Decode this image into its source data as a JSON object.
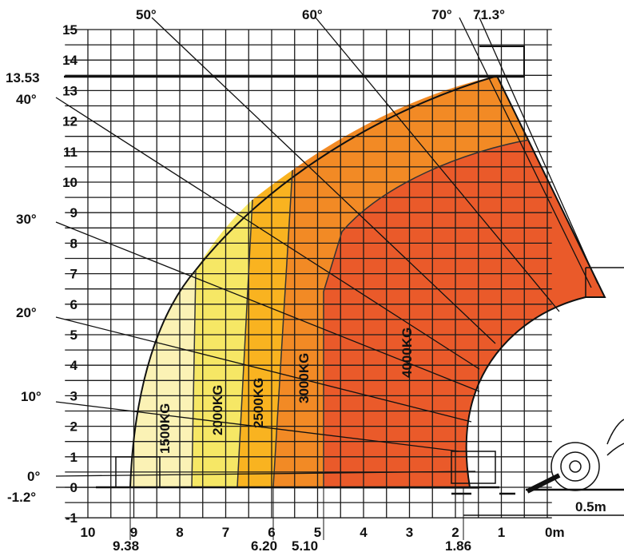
{
  "chart_data": {
    "type": "load_chart",
    "x_axis": {
      "unit_label": "0m",
      "ticks": [
        "10",
        "9",
        "8",
        "7",
        "6",
        "5",
        "4",
        "3",
        "2",
        "1"
      ],
      "marked_values": [
        "9.38",
        "6.20",
        "5.10",
        "1.86"
      ]
    },
    "y_axis": {
      "ticks": [
        "15",
        "14",
        "13",
        "12",
        "11",
        "10",
        "9",
        "8",
        "7",
        "6",
        "5",
        "4",
        "3",
        "2",
        "1",
        "0",
        "-1"
      ],
      "max_height_label": "13.53"
    },
    "angles": [
      {
        "label": "-1.2°",
        "value": -1.2
      },
      {
        "label": "0°",
        "value": 0
      },
      {
        "label": "10°",
        "value": 10
      },
      {
        "label": "20°",
        "value": 20
      },
      {
        "label": "30°",
        "value": 30
      },
      {
        "label": "40°",
        "value": 40
      },
      {
        "label": "50°",
        "value": 50
      },
      {
        "label": "60°",
        "value": 60
      },
      {
        "label": "70°",
        "value": 70
      },
      {
        "label": "71.3°",
        "value": 71.3
      }
    ],
    "load_zones": [
      {
        "label": "1500KG",
        "color": "#fbf2b5"
      },
      {
        "label": "2000KG",
        "color": "#f6e765"
      },
      {
        "label": "2500KG",
        "color": "#f9b320"
      },
      {
        "label": "3000KG",
        "color": "#f28a25"
      },
      {
        "label": "4000KG",
        "color": "#ea5a2a"
      }
    ],
    "scale_annotation": "0.5m"
  }
}
